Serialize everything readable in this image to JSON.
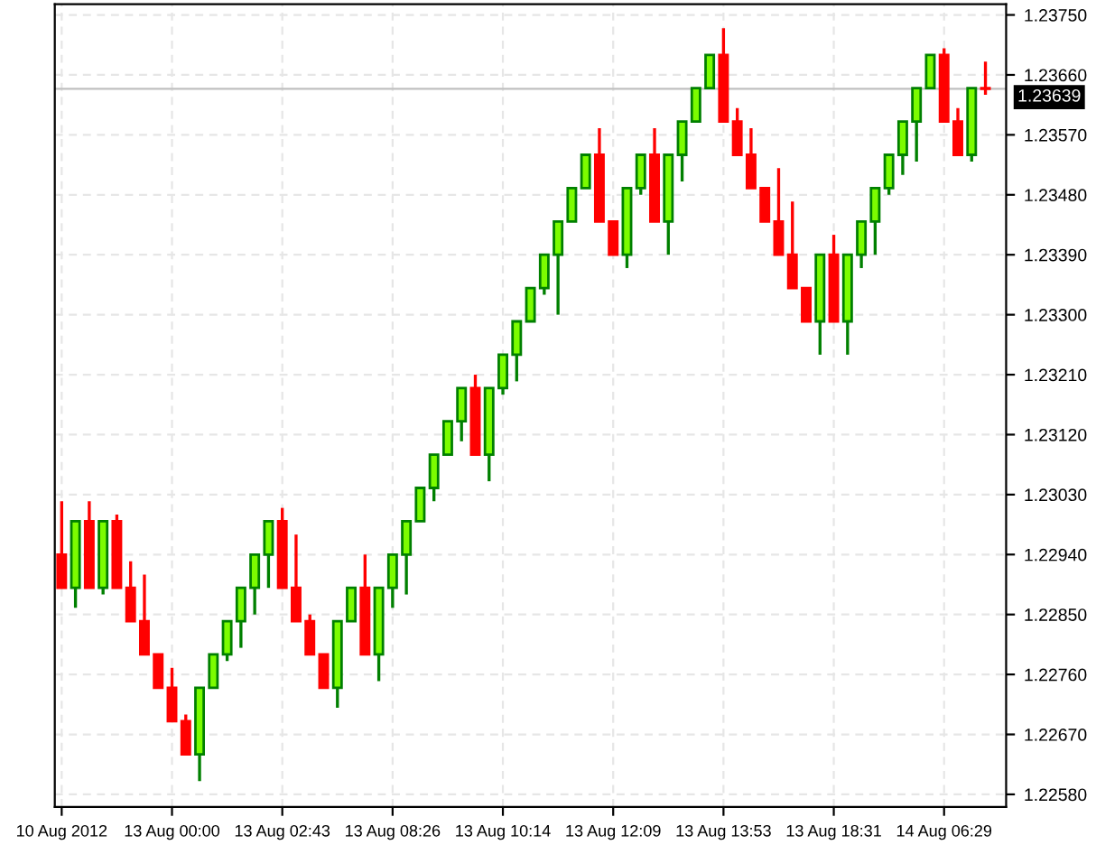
{
  "chart_data": {
    "type": "candlestick",
    "categories": [
      "10 Aug 2012",
      null,
      null,
      null,
      null,
      null,
      null,
      null,
      "13 Aug 00:00",
      null,
      null,
      null,
      null,
      null,
      null,
      null,
      "13 Aug 02:43",
      null,
      null,
      null,
      null,
      null,
      null,
      null,
      "13 Aug 08:26",
      null,
      null,
      null,
      null,
      null,
      null,
      null,
      "13 Aug 10:14",
      null,
      null,
      null,
      null,
      null,
      null,
      null,
      "13 Aug 12:09",
      null,
      null,
      null,
      null,
      null,
      null,
      null,
      "13 Aug 13:53",
      null,
      null,
      null,
      null,
      null,
      null,
      null,
      "13 Aug 18:31",
      null,
      null,
      null,
      null,
      null,
      null,
      null,
      "14 Aug 06:29",
      null,
      null,
      null
    ],
    "ohlc": [
      [
        1.2294,
        1.2302,
        1.2289,
        1.2289
      ],
      [
        1.2289,
        1.2299,
        1.2286,
        1.2299
      ],
      [
        1.2299,
        1.2302,
        1.2289,
        1.2289
      ],
      [
        1.2289,
        1.2299,
        1.2288,
        1.2299
      ],
      [
        1.2299,
        1.23,
        1.2289,
        1.2289
      ],
      [
        1.2289,
        1.2293,
        1.2284,
        1.2284
      ],
      [
        1.2284,
        1.2291,
        1.2279,
        1.2279
      ],
      [
        1.2279,
        1.2279,
        1.2274,
        1.2274
      ],
      [
        1.2274,
        1.2277,
        1.2269,
        1.2269
      ],
      [
        1.2269,
        1.227,
        1.2264,
        1.2264
      ],
      [
        1.2264,
        1.2274,
        1.226,
        1.2274
      ],
      [
        1.2274,
        1.2279,
        1.2274,
        1.2279
      ],
      [
        1.2279,
        1.2284,
        1.2278,
        1.2284
      ],
      [
        1.2284,
        1.2289,
        1.228,
        1.2289
      ],
      [
        1.2289,
        1.2294,
        1.2285,
        1.2294
      ],
      [
        1.2294,
        1.2299,
        1.2289,
        1.2299
      ],
      [
        1.2299,
        1.2301,
        1.2289,
        1.2289
      ],
      [
        1.2289,
        1.2297,
        1.2284,
        1.2284
      ],
      [
        1.2284,
        1.2285,
        1.2279,
        1.2279
      ],
      [
        1.2279,
        1.2279,
        1.2274,
        1.2274
      ],
      [
        1.2274,
        1.2284,
        1.2271,
        1.2284
      ],
      [
        1.2284,
        1.2289,
        1.2284,
        1.2289
      ],
      [
        1.2289,
        1.2294,
        1.2279,
        1.2279
      ],
      [
        1.2279,
        1.2289,
        1.2275,
        1.2289
      ],
      [
        1.2289,
        1.2294,
        1.2286,
        1.2294
      ],
      [
        1.2294,
        1.2299,
        1.2288,
        1.2299
      ],
      [
        1.2299,
        1.2304,
        1.2299,
        1.2304
      ],
      [
        1.2304,
        1.2309,
        1.2302,
        1.2309
      ],
      [
        1.2309,
        1.2314,
        1.2309,
        1.2314
      ],
      [
        1.2314,
        1.2319,
        1.2311,
        1.2319
      ],
      [
        1.2319,
        1.2321,
        1.2309,
        1.2309
      ],
      [
        1.2309,
        1.2319,
        1.2305,
        1.2319
      ],
      [
        1.2319,
        1.2324,
        1.2318,
        1.2324
      ],
      [
        1.2324,
        1.2329,
        1.232,
        1.2329
      ],
      [
        1.2329,
        1.2334,
        1.2329,
        1.2334
      ],
      [
        1.2334,
        1.2339,
        1.2333,
        1.2339
      ],
      [
        1.2339,
        1.2344,
        1.233,
        1.2344
      ],
      [
        1.2344,
        1.2349,
        1.2344,
        1.2349
      ],
      [
        1.2349,
        1.2354,
        1.2349,
        1.2354
      ],
      [
        1.2354,
        1.2358,
        1.2344,
        1.2344
      ],
      [
        1.2344,
        1.2344,
        1.2339,
        1.2339
      ],
      [
        1.2339,
        1.2349,
        1.2337,
        1.2349
      ],
      [
        1.2349,
        1.2354,
        1.2348,
        1.2354
      ],
      [
        1.2354,
        1.2358,
        1.2344,
        1.2344
      ],
      [
        1.2344,
        1.2354,
        1.2339,
        1.2354
      ],
      [
        1.2354,
        1.2359,
        1.235,
        1.2359
      ],
      [
        1.2359,
        1.2364,
        1.2359,
        1.2364
      ],
      [
        1.2364,
        1.2369,
        1.2364,
        1.2369
      ],
      [
        1.2369,
        1.2373,
        1.2359,
        1.2359
      ],
      [
        1.2359,
        1.2361,
        1.2354,
        1.2354
      ],
      [
        1.2354,
        1.2358,
        1.2349,
        1.2349
      ],
      [
        1.2349,
        1.2349,
        1.2344,
        1.2344
      ],
      [
        1.2344,
        1.2352,
        1.2339,
        1.2339
      ],
      [
        1.2339,
        1.2347,
        1.2334,
        1.2334
      ],
      [
        1.2334,
        1.2334,
        1.2329,
        1.2329
      ],
      [
        1.2329,
        1.2339,
        1.2324,
        1.2339
      ],
      [
        1.2339,
        1.2342,
        1.2329,
        1.2329
      ],
      [
        1.2329,
        1.2339,
        1.2324,
        1.2339
      ],
      [
        1.2339,
        1.2344,
        1.2337,
        1.2344
      ],
      [
        1.2344,
        1.2349,
        1.2339,
        1.2349
      ],
      [
        1.2349,
        1.2354,
        1.2348,
        1.2354
      ],
      [
        1.2354,
        1.2359,
        1.2351,
        1.2359
      ],
      [
        1.2359,
        1.2364,
        1.2353,
        1.2364
      ],
      [
        1.2364,
        1.2369,
        1.2364,
        1.2369
      ],
      [
        1.2369,
        1.237,
        1.2359,
        1.2359
      ],
      [
        1.2359,
        1.2361,
        1.2354,
        1.2354
      ],
      [
        1.2354,
        1.2364,
        1.2353,
        1.2364
      ],
      [
        1.2364,
        1.2368,
        1.2363,
        1.23639
      ]
    ],
    "colors": [
      "#ff0000",
      "#7cfc00",
      "#ff0000",
      "#7cfc00",
      "#ff0000",
      "#ff0000",
      "#ff0000",
      "#ff0000",
      "#ff0000",
      "#ff0000",
      "#7cfc00",
      "#7cfc00",
      "#7cfc00",
      "#7cfc00",
      "#7cfc00",
      "#7cfc00",
      "#ff0000",
      "#ff0000",
      "#ff0000",
      "#ff0000",
      "#7cfc00",
      "#7cfc00",
      "#ff0000",
      "#7cfc00",
      "#7cfc00",
      "#7cfc00",
      "#7cfc00",
      "#7cfc00",
      "#7cfc00",
      "#7cfc00",
      "#ff0000",
      "#7cfc00",
      "#7cfc00",
      "#7cfc00",
      "#7cfc00",
      "#7cfc00",
      "#7cfc00",
      "#7cfc00",
      "#7cfc00",
      "#ff0000",
      "#ff0000",
      "#7cfc00",
      "#7cfc00",
      "#ff0000",
      "#7cfc00",
      "#7cfc00",
      "#7cfc00",
      "#7cfc00",
      "#ff0000",
      "#ff0000",
      "#ff0000",
      "#ff0000",
      "#ff0000",
      "#ff0000",
      "#ff0000",
      "#7cfc00",
      "#ff0000",
      "#7cfc00",
      "#7cfc00",
      "#7cfc00",
      "#7cfc00",
      "#7cfc00",
      "#7cfc00",
      "#7cfc00",
      "#ff0000",
      "#ff0000",
      "#7cfc00",
      "#ff0000"
    ],
    "ylim": [
      1.22561,
      1.23766
    ],
    "yticks": [
      {
        "value": 1.2258,
        "label": "1.22580"
      },
      {
        "value": 1.2267,
        "label": "1.22670"
      },
      {
        "value": 1.2276,
        "label": "1.22760"
      },
      {
        "value": 1.2285,
        "label": "1.22850"
      },
      {
        "value": 1.2294,
        "label": "1.22940"
      },
      {
        "value": 1.2303,
        "label": "1.23030"
      },
      {
        "value": 1.2312,
        "label": "1.23120"
      },
      {
        "value": 1.2321,
        "label": "1.23210"
      },
      {
        "value": 1.233,
        "label": "1.23300"
      },
      {
        "value": 1.2339,
        "label": "1.23390"
      },
      {
        "value": 1.2348,
        "label": "1.23480"
      },
      {
        "value": 1.2357,
        "label": "1.23570"
      },
      {
        "value": 1.2366,
        "label": "1.23660"
      },
      {
        "value": 1.2375,
        "label": "1.23750"
      }
    ],
    "ref_lines": [
      {
        "axis": "y",
        "value": 1.23639,
        "label": "1.23639",
        "color": "#c0c0c0"
      }
    ],
    "grid": true
  }
}
